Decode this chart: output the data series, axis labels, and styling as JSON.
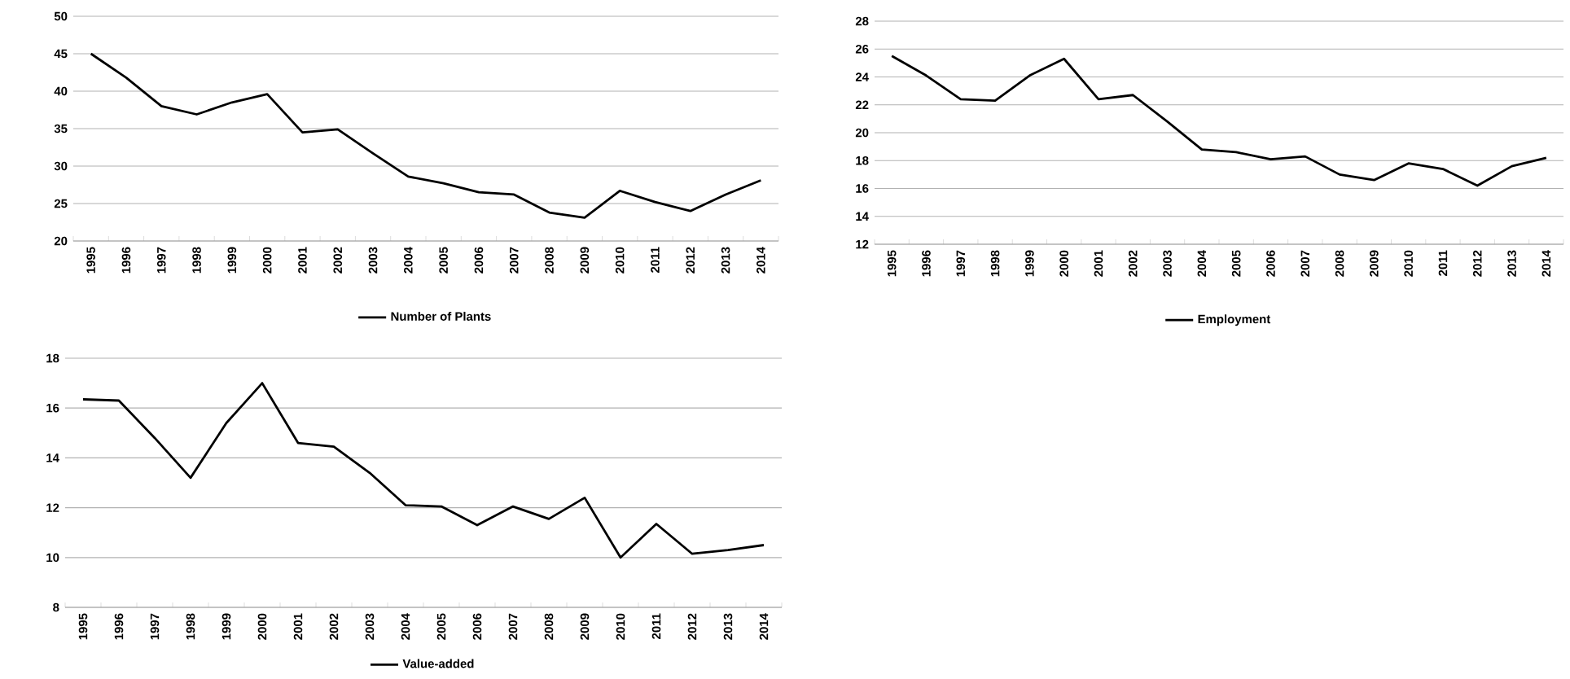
{
  "chart_data": [
    {
      "type": "line",
      "categories": [
        "1995",
        "1996",
        "1997",
        "1998",
        "1999",
        "2000",
        "2001",
        "2002",
        "2003",
        "2004",
        "2005",
        "2006",
        "2007",
        "2008",
        "2009",
        "2010",
        "2011",
        "2012",
        "2013",
        "2014"
      ],
      "series": [
        {
          "name": "Number of Plants",
          "color": "#000000",
          "values": [
            45,
            41.8,
            38,
            36.9,
            38.5,
            39.6,
            34.5,
            34.9,
            31.7,
            28.6,
            27.7,
            26.5,
            26.2,
            23.8,
            23.1,
            26.7,
            25.2,
            24,
            26.2,
            28.1
          ]
        }
      ],
      "ylim": [
        20,
        50
      ],
      "yticks": [
        20,
        25,
        30,
        35,
        40,
        45,
        50
      ],
      "grid": "y",
      "legend": "bottom",
      "marker": "none"
    },
    {
      "type": "line",
      "categories": [
        "1995",
        "1996",
        "1997",
        "1998",
        "1999",
        "2000",
        "2001",
        "2002",
        "2003",
        "2004",
        "2005",
        "2006",
        "2007",
        "2008",
        "2009",
        "2010",
        "2011",
        "2012",
        "2013",
        "2014"
      ],
      "series": [
        {
          "name": "Employment",
          "color": "#000000",
          "values": [
            25.5,
            24.1,
            22.4,
            22.3,
            24.1,
            25.3,
            22.4,
            22.7,
            20.8,
            18.8,
            18.6,
            18.1,
            18.3,
            17,
            16.6,
            17.8,
            17.4,
            16.2,
            17.6,
            18.2
          ]
        }
      ],
      "ylim": [
        12,
        28
      ],
      "yticks": [
        12,
        14,
        16,
        18,
        20,
        22,
        24,
        26,
        28
      ],
      "grid": "y",
      "legend": "bottom",
      "marker": "none"
    },
    {
      "type": "line",
      "categories": [
        "1995",
        "1996",
        "1997",
        "1998",
        "1999",
        "2000",
        "2001",
        "2002",
        "2003",
        "2004",
        "2005",
        "2006",
        "2007",
        "2008",
        "2009",
        "2010",
        "2011",
        "2012",
        "2013",
        "2014"
      ],
      "series": [
        {
          "name": "Value-added",
          "color": "#000000",
          "values": [
            16.35,
            16.3,
            14.8,
            13.2,
            15.4,
            17,
            14.6,
            14.45,
            13.4,
            12.1,
            12.05,
            11.3,
            12.05,
            11.55,
            12.4,
            10,
            11.35,
            10.15,
            10.3,
            10.5
          ]
        }
      ],
      "ylim": [
        8,
        18
      ],
      "yticks": [
        8,
        10,
        12,
        14,
        16,
        18
      ],
      "grid": "y",
      "legend": "bottom",
      "marker": "none"
    }
  ]
}
